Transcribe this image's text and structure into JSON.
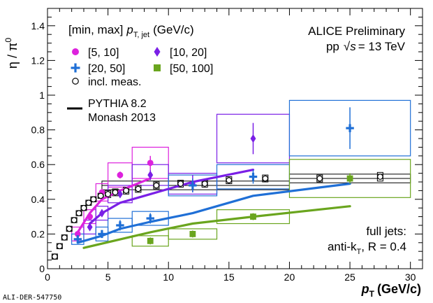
{
  "footer_id": "ALI-DER-547750",
  "chart_data": {
    "type": "scatter",
    "header_label": "ALICE Preliminary",
    "system_label": "pp",
    "energy_label": "= 13 TeV",
    "selection_label": "[min, max]",
    "selection_var": "T, jet",
    "selection_unit": "(GeV/c)",
    "jets_label": "full jets:",
    "algo_label": "anti-k",
    "algo_sub": "T",
    "radius_label": ", R = 0.4",
    "xlabel": "p",
    "xlabel_sub": "T",
    "xunit": "(GeV/c)",
    "ylabel": "η / π",
    "ylabel_sup": "0",
    "xlim": [
      0,
      31
    ],
    "ylim": [
      0,
      1.5
    ],
    "x_ticks": [
      "0",
      "5",
      "10",
      "15",
      "20",
      "25",
      "30"
    ],
    "y_ticks": [
      "0",
      "0.2",
      "0.4",
      "0.6",
      "0.8",
      "1",
      "1.2",
      "1.4"
    ],
    "legend": [
      {
        "label": "[5, 10]",
        "color": "#dd22dd",
        "marker": "circle"
      },
      {
        "label": "[10, 20]",
        "color": "#7a1fe6",
        "marker": "diamond"
      },
      {
        "label": "[20, 50]",
        "color": "#1f6fd6",
        "marker": "cross"
      },
      {
        "label": "[50, 100]",
        "color": "#6aa51e",
        "marker": "square"
      },
      {
        "label": "incl. meas.",
        "color": "#000000",
        "marker": "open-circle"
      }
    ],
    "model_lines": [
      "PYTHIA 8.2",
      "Monash 2013"
    ],
    "series": [
      {
        "name": "[5, 10]",
        "color": "#dd22dd",
        "marker": "circle",
        "points": [
          {
            "x": 2.5,
            "y": 0.2,
            "ex": 0.5,
            "ey": 0.02,
            "sys": 0.04
          },
          {
            "x": 3.5,
            "y": 0.3,
            "ex": 0.5,
            "ey": 0.02,
            "sys": 0.04
          },
          {
            "x": 4.5,
            "y": 0.44,
            "ex": 0.5,
            "ey": 0.02,
            "sys": 0.05
          },
          {
            "x": 6.0,
            "y": 0.54,
            "ex": 1.0,
            "ey": 0.02,
            "sys": 0.07
          },
          {
            "x": 8.5,
            "y": 0.61,
            "ex": 1.5,
            "ey": 0.04,
            "sys": 0.09
          }
        ],
        "model": [
          [
            2.5,
            0.21
          ],
          [
            3.5,
            0.32
          ],
          [
            4.5,
            0.4
          ],
          [
            6.0,
            0.45
          ],
          [
            8.5,
            0.52
          ]
        ]
      },
      {
        "name": "[10, 20]",
        "color": "#7a1fe6",
        "marker": "diamond",
        "points": [
          {
            "x": 3.5,
            "y": 0.24,
            "ex": 0.5,
            "ey": 0.02,
            "sys": 0.04
          },
          {
            "x": 4.5,
            "y": 0.32,
            "ex": 0.5,
            "ey": 0.02,
            "sys": 0.04
          },
          {
            "x": 6.0,
            "y": 0.43,
            "ex": 1.0,
            "ey": 0.02,
            "sys": 0.05
          },
          {
            "x": 8.5,
            "y": 0.54,
            "ex": 1.5,
            "ey": 0.03,
            "sys": 0.06
          },
          {
            "x": 12.0,
            "y": 0.49,
            "ex": 2.0,
            "ey": 0.05,
            "sys": 0.06
          },
          {
            "x": 17.0,
            "y": 0.75,
            "ex": 3.0,
            "ey": 0.09,
            "sys": 0.14
          }
        ],
        "model": [
          [
            3.5,
            0.26
          ],
          [
            4.5,
            0.32
          ],
          [
            6.0,
            0.38
          ],
          [
            8.5,
            0.43
          ],
          [
            12.0,
            0.5
          ],
          [
            17.0,
            0.57
          ]
        ]
      },
      {
        "name": "[20, 50]",
        "color": "#1f6fd6",
        "marker": "cross",
        "points": [
          {
            "x": 2.5,
            "y": 0.17,
            "ex": 0.5,
            "ey": 0.02,
            "sys": 0.03
          },
          {
            "x": 4.5,
            "y": 0.2,
            "ex": 0.5,
            "ey": 0.02,
            "sys": 0.04
          },
          {
            "x": 6.0,
            "y": 0.25,
            "ex": 1.0,
            "ey": 0.03,
            "sys": 0.04
          },
          {
            "x": 8.5,
            "y": 0.29,
            "ex": 1.5,
            "ey": 0.03,
            "sys": 0.04
          },
          {
            "x": 12.0,
            "y": 0.48,
            "ex": 2.0,
            "ey": 0.04,
            "sys": 0.06
          },
          {
            "x": 17.0,
            "y": 0.53,
            "ex": 3.0,
            "ey": 0.04,
            "sys": 0.07
          },
          {
            "x": 25.0,
            "y": 0.81,
            "ex": 5.0,
            "ey": 0.12,
            "sys": 0.16
          }
        ],
        "model": [
          [
            2.5,
            0.15
          ],
          [
            4.5,
            0.19
          ],
          [
            6.0,
            0.23
          ],
          [
            8.5,
            0.27
          ],
          [
            12.0,
            0.32
          ],
          [
            17.0,
            0.42
          ],
          [
            25.0,
            0.49
          ]
        ]
      },
      {
        "name": "[50, 100]",
        "color": "#6aa51e",
        "marker": "square",
        "points": [
          {
            "x": 8.5,
            "y": 0.16,
            "ex": 1.5,
            "ey": 0.02,
            "sys": 0.03
          },
          {
            "x": 12.0,
            "y": 0.2,
            "ex": 2.0,
            "ey": 0.02,
            "sys": 0.03
          },
          {
            "x": 17.0,
            "y": 0.3,
            "ex": 3.0,
            "ey": 0.02,
            "sys": 0.04
          },
          {
            "x": 25.0,
            "y": 0.52,
            "ex": 5.0,
            "ey": 0.03,
            "sys": 0.11
          }
        ],
        "model": [
          [
            3.0,
            0.12
          ],
          [
            8.5,
            0.21
          ],
          [
            12.0,
            0.26
          ],
          [
            17.0,
            0.3
          ],
          [
            25.0,
            0.36
          ]
        ]
      },
      {
        "name": "incl. meas.",
        "color": "#000000",
        "marker": "open-circle",
        "points": [
          {
            "x": 0.6,
            "y": 0.07,
            "sys": 0.015
          },
          {
            "x": 1.0,
            "y": 0.13,
            "sys": 0.015
          },
          {
            "x": 1.4,
            "y": 0.18,
            "sys": 0.015
          },
          {
            "x": 1.8,
            "y": 0.23,
            "sys": 0.015
          },
          {
            "x": 2.2,
            "y": 0.28,
            "sys": 0.015
          },
          {
            "x": 2.6,
            "y": 0.32,
            "sys": 0.015
          },
          {
            "x": 3.0,
            "y": 0.35,
            "sys": 0.015
          },
          {
            "x": 3.4,
            "y": 0.38,
            "sys": 0.015
          },
          {
            "x": 3.8,
            "y": 0.4,
            "sys": 0.015
          },
          {
            "x": 4.4,
            "y": 0.42,
            "sys": 0.015
          },
          {
            "x": 5.0,
            "y": 0.43,
            "sys": 0.02
          },
          {
            "x": 5.6,
            "y": 0.44,
            "sys": 0.02
          },
          {
            "x": 6.5,
            "y": 0.45,
            "sys": 0.02
          },
          {
            "x": 7.5,
            "y": 0.46,
            "sys": 0.02
          },
          {
            "x": 9.0,
            "y": 0.48,
            "sys": 0.02
          },
          {
            "x": 11.0,
            "y": 0.49,
            "sys": 0.02
          },
          {
            "x": 13.0,
            "y": 0.49,
            "sys": 0.02
          },
          {
            "x": 15.0,
            "y": 0.51,
            "sys": 0.02
          },
          {
            "x": 18.0,
            "y": 0.52,
            "sys": 0.02
          },
          {
            "x": 22.5,
            "y": 0.52,
            "sys": 0.02
          },
          {
            "x": 27.5,
            "y": 0.53,
            "sys": 0.025
          }
        ],
        "bands": [
          {
            "x0": 4.5,
            "x1": 20.0,
            "y": 0.48,
            "half": 0.025
          },
          {
            "x0": 20.0,
            "x1": 30.0,
            "y": 0.52,
            "half": 0.025
          }
        ]
      }
    ]
  }
}
